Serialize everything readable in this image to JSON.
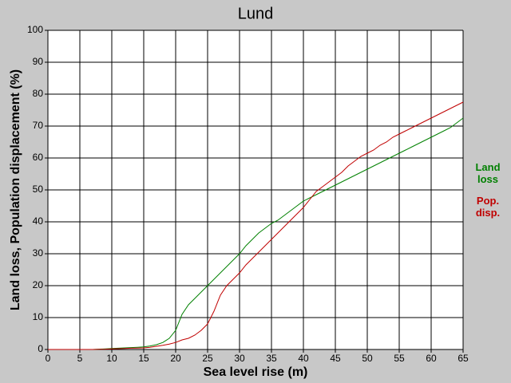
{
  "chart_data": {
    "type": "line",
    "title": "Lund",
    "x_label": "Sea level rise (m)",
    "y_label": "Land loss, Population displacement (%)",
    "x": [
      0,
      1,
      2,
      3,
      4,
      5,
      6,
      7,
      8,
      9,
      10,
      11,
      12,
      13,
      14,
      15,
      16,
      17,
      18,
      19,
      20,
      21,
      22,
      23,
      24,
      25,
      26,
      27,
      28,
      29,
      30,
      31,
      32,
      33,
      34,
      35,
      36,
      37,
      38,
      39,
      40,
      41,
      42,
      43,
      44,
      45,
      46,
      47,
      48,
      49,
      50,
      51,
      52,
      53,
      54,
      55,
      56,
      57,
      58,
      59,
      60,
      61,
      62,
      63,
      64,
      65
    ],
    "series": [
      {
        "name": "Land loss",
        "color": "#008000",
        "values": [
          0,
          0,
          0,
          0,
          0,
          0,
          0,
          0,
          0.1,
          0.2,
          0.3,
          0.4,
          0.5,
          0.6,
          0.7,
          0.8,
          1.1,
          1.5,
          2.2,
          3.5,
          6,
          11,
          14,
          16,
          18,
          20,
          22,
          24,
          26,
          28,
          30,
          32.5,
          34.5,
          36.5,
          38,
          39.5,
          40.5,
          42,
          43.5,
          45,
          46.5,
          47.5,
          48.5,
          49.5,
          50.5,
          51.5,
          52.5,
          53.5,
          54.5,
          55.5,
          56.5,
          57.5,
          58.5,
          59.5,
          60.5,
          61.5,
          62.5,
          63.5,
          64.5,
          65.5,
          66.5,
          67.5,
          68.5,
          69.5,
          71,
          72.5
        ]
      },
      {
        "name": "Pop. disp.",
        "color": "#c00000",
        "values": [
          0,
          0,
          0,
          0,
          0,
          0,
          0,
          0,
          0.05,
          0.1,
          0.2,
          0.25,
          0.3,
          0.4,
          0.45,
          0.5,
          0.7,
          1,
          1.3,
          1.7,
          2.2,
          3,
          3.5,
          4.5,
          6,
          8,
          12,
          17,
          20,
          22,
          24,
          26.5,
          28.5,
          30.5,
          32.5,
          34.5,
          36.5,
          38.5,
          40.5,
          42.5,
          44.5,
          47,
          49.5,
          51,
          52.5,
          54,
          55.5,
          57.5,
          59,
          60.5,
          61.5,
          62.5,
          64,
          65,
          66.5,
          67.5,
          68.5,
          69.5,
          70.5,
          71.5,
          72.5,
          73.5,
          74.5,
          75.5,
          76.5,
          77.5
        ]
      }
    ],
    "xlim": [
      0,
      65
    ],
    "xticks": [
      0,
      5,
      10,
      15,
      20,
      25,
      30,
      35,
      40,
      45,
      50,
      55,
      60,
      65
    ],
    "ylim": [
      0,
      100
    ],
    "yticks": [
      0,
      10,
      20,
      30,
      40,
      50,
      60,
      70,
      80,
      90,
      100
    ],
    "grid": true
  }
}
